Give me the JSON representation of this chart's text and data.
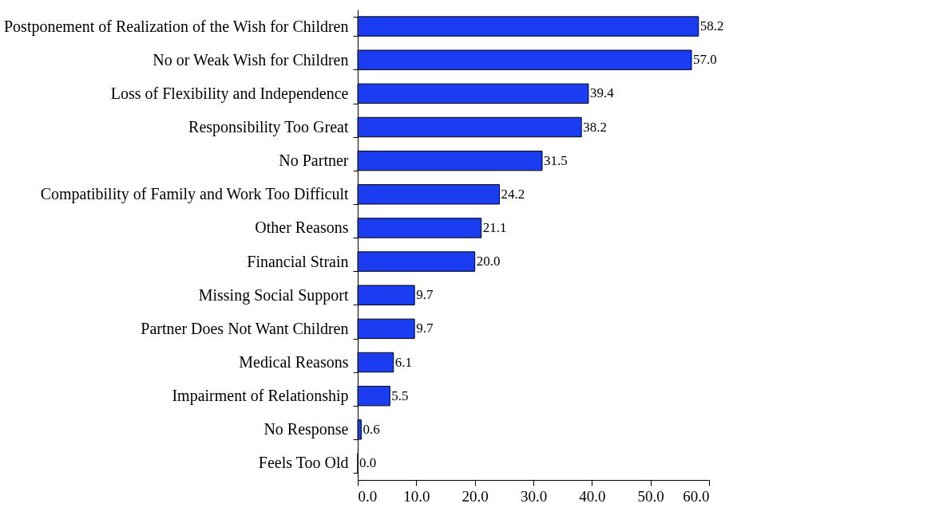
{
  "chart_data": {
    "type": "bar",
    "orientation": "horizontal",
    "categories": [
      "Postponement of Realization of the Wish for Children",
      "No or Weak Wish for Children",
      "Loss of Flexibility and Independence",
      "Responsibility Too Great",
      "No Partner",
      "Compatibility of Family and Work Too Difficult",
      "Other Reasons",
      "Financial Strain",
      "Missing Social Support",
      "Partner Does Not Want Children",
      "Medical Reasons",
      "Impairment of Relationship",
      "No Response",
      "Feels Too Old"
    ],
    "values": [
      58.2,
      57.0,
      39.4,
      38.2,
      31.5,
      24.2,
      21.1,
      20.0,
      9.7,
      9.7,
      6.1,
      5.5,
      0.6,
      0.0
    ],
    "value_labels": [
      "58.2",
      "57.0",
      "39.4",
      "38.2",
      "31.5",
      "24.2",
      "21.1",
      "20.0",
      "9.7",
      "9.7",
      "6.1",
      "5.5",
      "0.6",
      "0.0"
    ],
    "color": "#1a3df2",
    "xlim": [
      0,
      60
    ],
    "xticks": [
      {
        "value": 0,
        "label": "0.0"
      },
      {
        "value": 10,
        "label": "10.0"
      },
      {
        "value": 20,
        "label": "20.0"
      },
      {
        "value": 30,
        "label": "30.0"
      },
      {
        "value": 40,
        "label": "40.0"
      },
      {
        "value": 50,
        "label": "50.0"
      },
      {
        "value": 60,
        "label": "60.0"
      }
    ],
    "grid": false
  }
}
